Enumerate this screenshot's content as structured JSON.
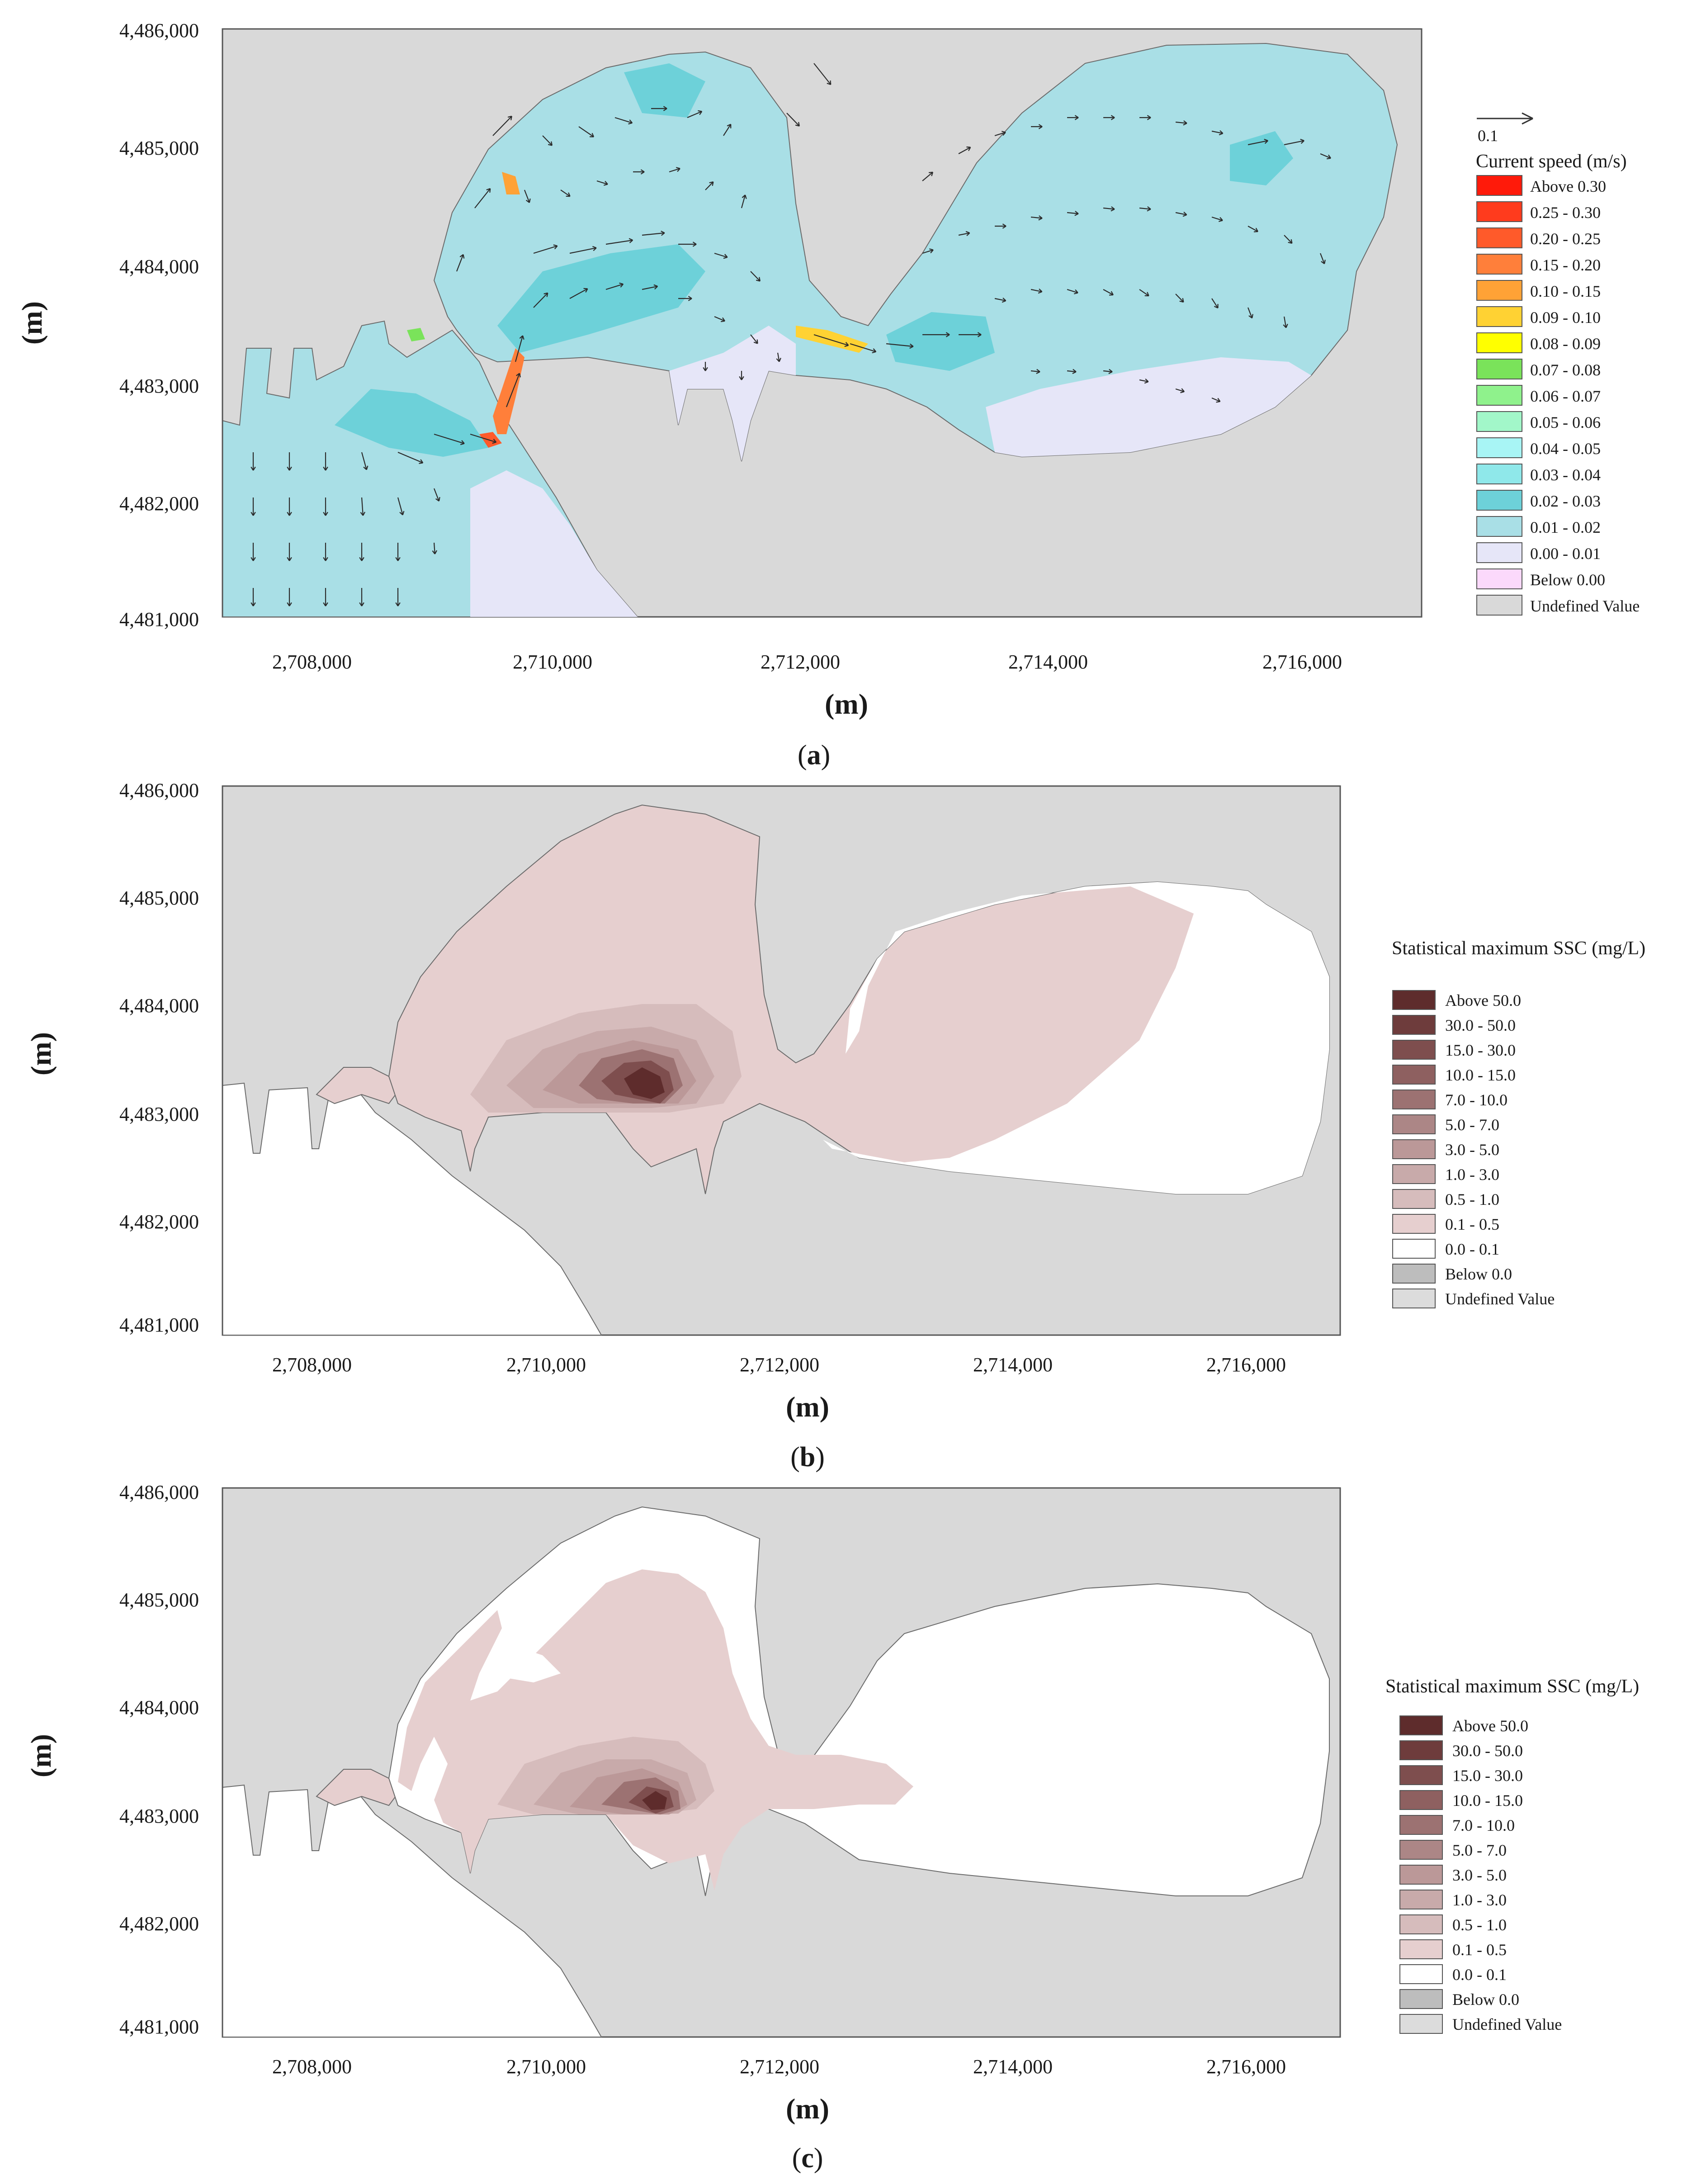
{
  "panels": [
    {
      "id": "a",
      "caption": "a",
      "y_ticks": [
        "4,486,000",
        "4,485,000",
        "4,484,000",
        "4,483,000",
        "4,482,000",
        "4,481,000"
      ],
      "x_ticks": [
        "2,708,000",
        "2,710,000",
        "2,712,000",
        "2,714,000",
        "2,716,000"
      ],
      "y_title": "(m)",
      "x_title": "(m)",
      "vector_scale_label": "0.1",
      "legend_title": "Current speed (m/s)",
      "legend": [
        {
          "label": "Above 0.30",
          "color": "#ff1a0a"
        },
        {
          "label": "0.25 - 0.30",
          "color": "#ff3b1d"
        },
        {
          "label": "0.20 - 0.25",
          "color": "#ff5a2a"
        },
        {
          "label": "0.15 - 0.20",
          "color": "#ff7f3a"
        },
        {
          "label": "0.10 - 0.15",
          "color": "#ffa236"
        },
        {
          "label": "0.09 - 0.10",
          "color": "#ffd233"
        },
        {
          "label": "0.08 - 0.09",
          "color": "#ffff00"
        },
        {
          "label": "0.07 - 0.08",
          "color": "#7ae35a"
        },
        {
          "label": "0.06 - 0.07",
          "color": "#8ff28c"
        },
        {
          "label": "0.05 - 0.06",
          "color": "#a2f7c9"
        },
        {
          "label": "0.04 - 0.05",
          "color": "#a8f5f5"
        },
        {
          "label": "0.03 - 0.04",
          "color": "#8fe8ea"
        },
        {
          "label": "0.02 - 0.03",
          "color": "#6dd1d9"
        },
        {
          "label": "0.01 - 0.02",
          "color": "#a9dfe6"
        },
        {
          "label": "0.00 - 0.01",
          "color": "#e6e6f8"
        },
        {
          "label": "Below  0.00",
          "color": "#fbd9fb"
        },
        {
          "label": "Undefined Value",
          "color": "#d9d9d9"
        }
      ]
    },
    {
      "id": "b",
      "caption": "b",
      "y_ticks": [
        "4,486,000",
        "4,485,000",
        "4,484,000",
        "4,483,000",
        "4,482,000",
        "4,481,000"
      ],
      "x_ticks": [
        "2,708,000",
        "2,710,000",
        "2,712,000",
        "2,714,000",
        "2,716,000"
      ],
      "y_title": "(m)",
      "x_title": "(m)",
      "legend_title": "Statistical maximum SSC (mg/L)",
      "legend": [
        {
          "label": "Above 50.0",
          "color": "#5e2c2c"
        },
        {
          "label": "30.0 - 50.0",
          "color": "#6e3c3c"
        },
        {
          "label": "15.0 - 30.0",
          "color": "#7e4e4e"
        },
        {
          "label": "10.0 - 15.0",
          "color": "#8e6060"
        },
        {
          "label": "7.0 - 10.0",
          "color": "#9c7272"
        },
        {
          "label": "5.0 -  7.0",
          "color": "#ac8686"
        },
        {
          "label": "3.0 -  5.0",
          "color": "#bb9898"
        },
        {
          "label": "1.0 -  3.0",
          "color": "#c8aaaa"
        },
        {
          "label": "0.5 -  1.0",
          "color": "#d6bcbc"
        },
        {
          "label": "0.1 -  0.5",
          "color": "#e6cfcf"
        },
        {
          "label": "0.0 -  0.1",
          "color": "#ffffff"
        },
        {
          "label": "Below    0.0",
          "color": "#bdbdbd"
        },
        {
          "label": "Undefined Value",
          "color": "#dcdcdc"
        }
      ]
    },
    {
      "id": "c",
      "caption": "c",
      "y_ticks": [
        "4,486,000",
        "4,485,000",
        "4,484,000",
        "4,483,000",
        "4,482,000",
        "4,481,000"
      ],
      "x_ticks": [
        "2,708,000",
        "2,710,000",
        "2,712,000",
        "2,714,000",
        "2,716,000"
      ],
      "y_title": "(m)",
      "x_title": "(m)",
      "legend_title": "Statistical maximum SSC (mg/L)",
      "legend": [
        {
          "label": "Above 50.0",
          "color": "#5e2c2c"
        },
        {
          "label": "30.0 - 50.0",
          "color": "#6e3c3c"
        },
        {
          "label": "15.0 - 30.0",
          "color": "#7e4e4e"
        },
        {
          "label": "10.0 - 15.0",
          "color": "#8e6060"
        },
        {
          "label": "7.0 - 10.0",
          "color": "#9c7272"
        },
        {
          "label": "5.0 -  7.0",
          "color": "#ac8686"
        },
        {
          "label": "3.0 -  5.0",
          "color": "#bb9898"
        },
        {
          "label": "1.0 -  3.0",
          "color": "#c8aaaa"
        },
        {
          "label": "0.5 -  1.0",
          "color": "#d6bcbc"
        },
        {
          "label": "0.1 -  0.5",
          "color": "#e6cfcf"
        },
        {
          "label": "0.0 -  0.1",
          "color": "#ffffff"
        },
        {
          "label": "Below    0.0",
          "color": "#bdbdbd"
        },
        {
          "label": "Undefined Value",
          "color": "#dcdcdc"
        }
      ]
    }
  ],
  "colors": {
    "land": "#d9d9d9",
    "border": "#6b6b6b",
    "arrow": "#2b2b2b"
  }
}
